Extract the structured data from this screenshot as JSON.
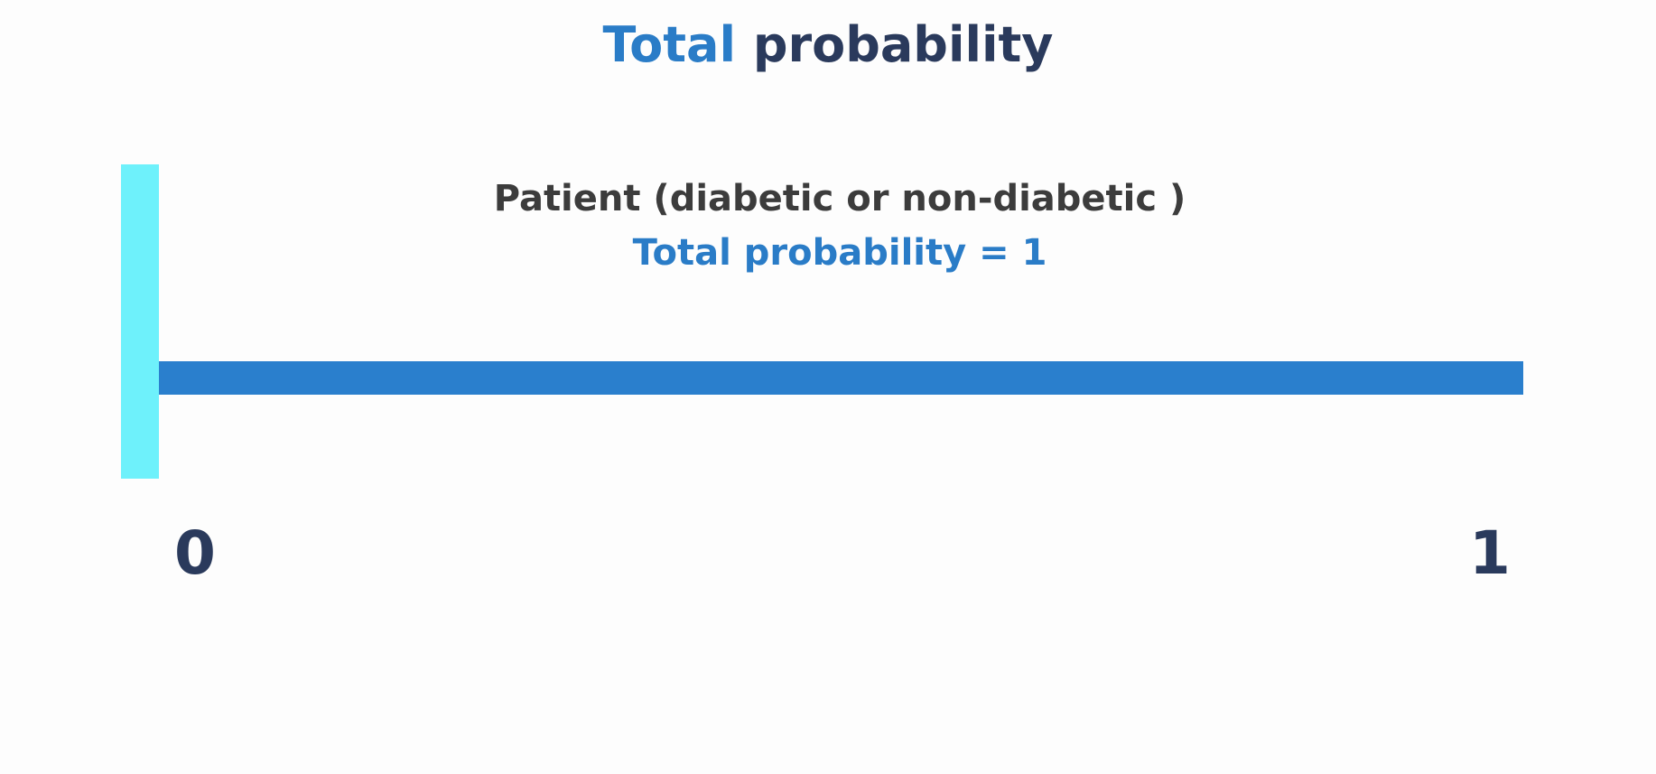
{
  "title": {
    "highlight": "Total",
    "rest": " probability"
  },
  "caption": {
    "line1": "Patient (diabetic or non-diabetic )",
    "line2": "Total probability = 1"
  },
  "axis": {
    "min_label": "0",
    "max_label": "1",
    "marker_value": 0
  },
  "colors": {
    "accent": "#2a7cc7",
    "dark": "#2a3a5c",
    "line": "#2a7fcd",
    "marker": "#6ef1fb"
  }
}
